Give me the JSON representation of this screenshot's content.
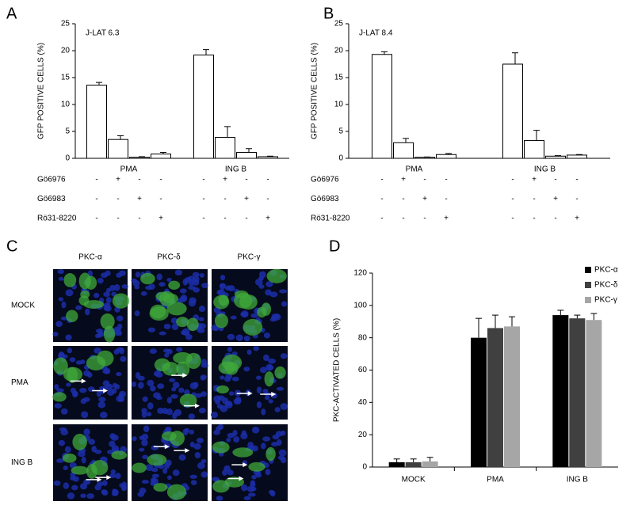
{
  "chart_data": [
    {
      "type": "bar",
      "label": "A",
      "annotation": "J-LAT 6.3",
      "ylabel": "GFP POSITIVE CELLS  (%)",
      "ylim": [
        0,
        25
      ],
      "yticks": [
        0,
        5,
        10,
        15,
        20,
        25
      ],
      "color": "#ffffff",
      "groups": [
        {
          "name": "PMA",
          "values": [
            13.6,
            3.5,
            0.2,
            0.8
          ],
          "errors": [
            0.5,
            0.7,
            0.1,
            0.3
          ]
        },
        {
          "name": "ING B",
          "values": [
            19.2,
            3.9,
            1.1,
            0.3
          ],
          "errors": [
            1.0,
            2.0,
            0.7,
            0.1
          ]
        }
      ],
      "treatments": [
        {
          "name": "Gö6976",
          "marks": [
            "-",
            "+",
            "-",
            "-",
            "-",
            "+",
            "-",
            "-"
          ]
        },
        {
          "name": "Gö6983",
          "marks": [
            "-",
            "-",
            "+",
            "-",
            "-",
            "-",
            "+",
            "-"
          ]
        },
        {
          "name": "Rö31-8220",
          "marks": [
            "-",
            "-",
            "-",
            "+",
            "-",
            "-",
            "-",
            "+"
          ]
        }
      ]
    },
    {
      "type": "bar",
      "label": "B",
      "annotation": "J-LAT 8.4",
      "ylabel": "GFP POSITIVE CELLS  (%)",
      "ylim": [
        0,
        25
      ],
      "yticks": [
        0,
        5,
        10,
        15,
        20,
        25
      ],
      "color": "#ffffff",
      "groups": [
        {
          "name": "PMA",
          "values": [
            19.3,
            2.9,
            0.2,
            0.7
          ],
          "errors": [
            0.5,
            0.8,
            0.05,
            0.2
          ]
        },
        {
          "name": "ING B",
          "values": [
            17.5,
            3.3,
            0.4,
            0.6
          ],
          "errors": [
            2.1,
            1.9,
            0.1,
            0.1
          ]
        }
      ],
      "treatments": [
        {
          "name": "Gö6976",
          "marks": [
            "-",
            "+",
            "-",
            "-",
            "-",
            "+",
            "-",
            "-"
          ]
        },
        {
          "name": "Gö6983",
          "marks": [
            "-",
            "-",
            "+",
            "-",
            "-",
            "-",
            "+",
            "-"
          ]
        },
        {
          "name": "Rö31-8220",
          "marks": [
            "-",
            "-",
            "-",
            "+",
            "-",
            "-",
            "-",
            "+"
          ]
        }
      ]
    },
    {
      "type": "grouped_bar",
      "label": "D",
      "ylabel": "PKC-ACTIVATED CELLS (%)",
      "ylim": [
        0,
        120
      ],
      "yticks": [
        0,
        20,
        40,
        60,
        80,
        100,
        120
      ],
      "legend": "upper right",
      "categories": [
        "MOCK",
        "PMA",
        "ING B"
      ],
      "series": [
        {
          "name": "PKC-α",
          "color": "#000000",
          "values": [
            3,
            80,
            94
          ],
          "errors": [
            2,
            12,
            3
          ]
        },
        {
          "name": "PKC-δ",
          "color": "#404040",
          "values": [
            3,
            86,
            92
          ],
          "errors": [
            2,
            8,
            2
          ]
        },
        {
          "name": "PKC-γ",
          "color": "#a6a6a6",
          "values": [
            3.5,
            87,
            91
          ],
          "errors": [
            2.5,
            6,
            4
          ]
        }
      ]
    }
  ],
  "image_grid": {
    "label": "C",
    "columns": [
      "PKC-α",
      "PKC-δ",
      "PKC-γ"
    ],
    "rows": [
      "MOCK",
      "PMA",
      "ING B"
    ]
  }
}
